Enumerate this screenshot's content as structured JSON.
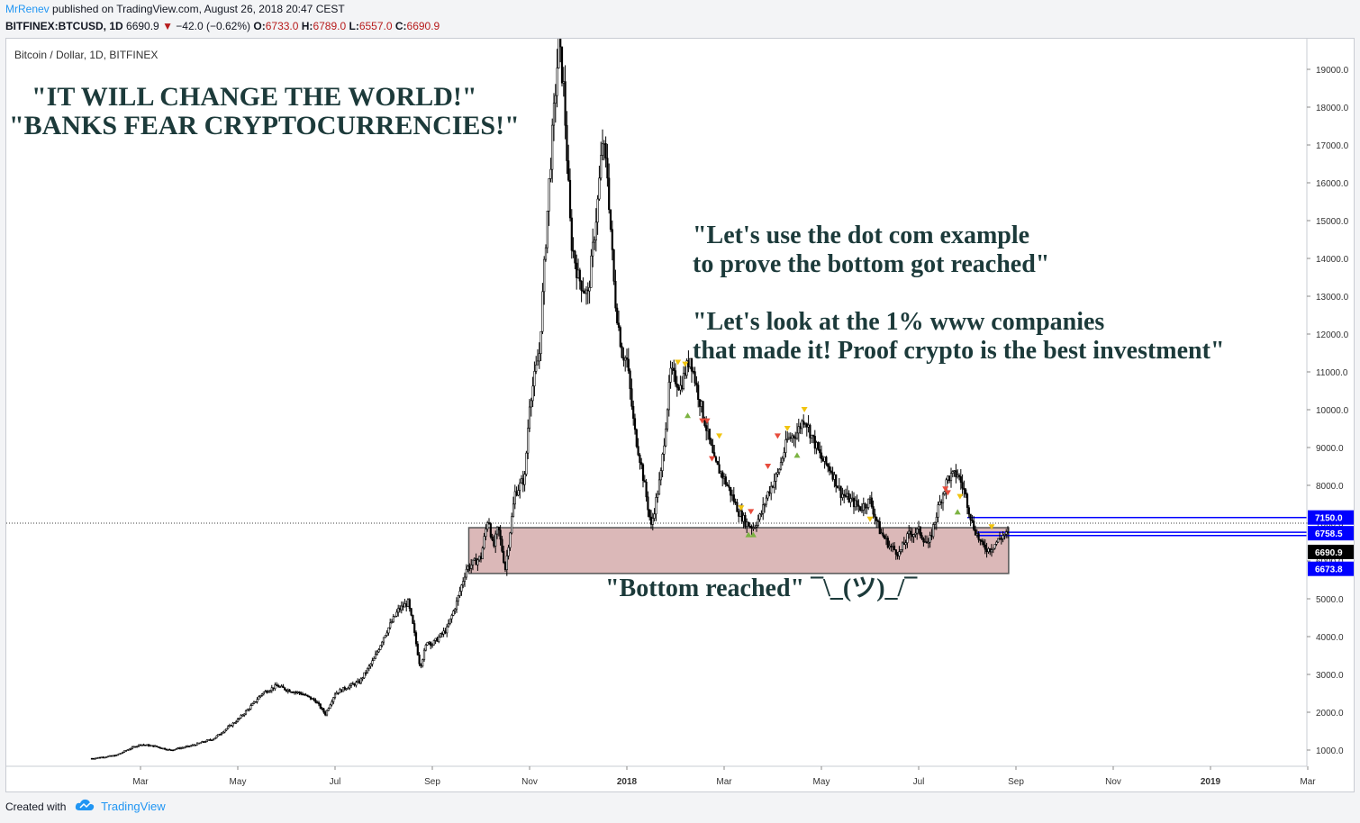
{
  "header": {
    "author": "MrRenev",
    "published": "published on TradingView.com, August 26, 2018 20:47 CEST",
    "symbol": "BITFINEX:BTCUSD, 1D",
    "last": "6690.9",
    "change": "−42.0 (−0.62%)",
    "o_label": "O:",
    "o": "6733.0",
    "h_label": "H:",
    "h": "6789.0",
    "l_label": "L:",
    "l": "6557.0",
    "c_label": "C:",
    "c": "6690.9"
  },
  "footer": {
    "created_with": "Created with",
    "brand": "TradingView"
  },
  "colors": {
    "candle": "#000000",
    "box_fill": "#dbb8b8",
    "box_stroke": "#555555",
    "level_line": "#0000ff",
    "price_label_bg": "#0000ff",
    "current_label_bg": "#000000",
    "annotation_text": "#1c3a3a",
    "signal_red": "#e74c3c",
    "signal_yellow": "#f1c40f",
    "signal_green": "#7cb342"
  },
  "chart_data": {
    "type": "candlestick",
    "title": "Bitcoin / Dollar, 1D, BITFINEX",
    "ylim": [
      500,
      19900
    ],
    "y_ticks": [
      1000,
      2000,
      3000,
      4000,
      5000,
      6000,
      7000,
      8000,
      9000,
      10000,
      11000,
      12000,
      13000,
      14000,
      15000,
      16000,
      17000,
      18000,
      19000
    ],
    "x_ticks": [
      {
        "label": "Mar",
        "t": 1.0,
        "bold": false
      },
      {
        "label": "May",
        "t": 3.0,
        "bold": false
      },
      {
        "label": "Jul",
        "t": 5.0,
        "bold": false
      },
      {
        "label": "Sep",
        "t": 7.0,
        "bold": false
      },
      {
        "label": "Nov",
        "t": 9.0,
        "bold": false
      },
      {
        "label": "2018",
        "t": 11.0,
        "bold": true
      },
      {
        "label": "Mar",
        "t": 13.0,
        "bold": false
      },
      {
        "label": "May",
        "t": 15.0,
        "bold": false
      },
      {
        "label": "Jul",
        "t": 17.0,
        "bold": false
      },
      {
        "label": "Sep",
        "t": 19.0,
        "bold": false
      },
      {
        "label": "Nov",
        "t": 21.0,
        "bold": false
      },
      {
        "label": "2019",
        "t": 23.0,
        "bold": true
      },
      {
        "label": "Mar",
        "t": 25.0,
        "bold": false
      }
    ],
    "price_path": [
      [
        0.0,
        780
      ],
      [
        0.5,
        860
      ],
      [
        0.8,
        1050
      ],
      [
        1.0,
        1150
      ],
      [
        1.3,
        1100
      ],
      [
        1.6,
        1000
      ],
      [
        2.0,
        1100
      ],
      [
        2.5,
        1300
      ],
      [
        2.8,
        1600
      ],
      [
        3.0,
        1800
      ],
      [
        3.3,
        2200
      ],
      [
        3.5,
        2500
      ],
      [
        3.8,
        2700
      ],
      [
        4.0,
        2600
      ],
      [
        4.3,
        2500
      ],
      [
        4.6,
        2300
      ],
      [
        4.8,
        1950
      ],
      [
        5.0,
        2500
      ],
      [
        5.3,
        2700
      ],
      [
        5.5,
        2800
      ],
      [
        5.8,
        3400
      ],
      [
        6.0,
        4000
      ],
      [
        6.3,
        4700
      ],
      [
        6.5,
        4900
      ],
      [
        6.6,
        4300
      ],
      [
        6.75,
        3200
      ],
      [
        6.9,
        3900
      ],
      [
        7.0,
        3800
      ],
      [
        7.3,
        4200
      ],
      [
        7.5,
        4900
      ],
      [
        7.7,
        5800
      ],
      [
        8.0,
        6100
      ],
      [
        8.15,
        7200
      ],
      [
        8.25,
        6300
      ],
      [
        8.35,
        6900
      ],
      [
        8.5,
        5800
      ],
      [
        8.7,
        7800
      ],
      [
        8.9,
        8200
      ],
      [
        9.0,
        10200
      ],
      [
        9.2,
        11500
      ],
      [
        9.4,
        16000
      ],
      [
        9.6,
        19700
      ],
      [
        9.7,
        18500
      ],
      [
        9.85,
        14500
      ],
      [
        10.0,
        13500
      ],
      [
        10.2,
        13000
      ],
      [
        10.4,
        15500
      ],
      [
        10.5,
        17100
      ],
      [
        10.6,
        16200
      ],
      [
        10.75,
        13000
      ],
      [
        10.9,
        11500
      ],
      [
        11.0,
        11300
      ],
      [
        11.15,
        9500
      ],
      [
        11.3,
        8500
      ],
      [
        11.5,
        6900
      ],
      [
        11.7,
        8300
      ],
      [
        11.9,
        11000
      ],
      [
        12.1,
        10600
      ],
      [
        12.3,
        11400
      ],
      [
        12.45,
        10500
      ],
      [
        12.6,
        9700
      ],
      [
        12.8,
        8600
      ],
      [
        12.95,
        8300
      ],
      [
        13.1,
        7900
      ],
      [
        13.3,
        7300
      ],
      [
        13.45,
        7000
      ],
      [
        13.6,
        6900
      ],
      [
        13.75,
        7200
      ],
      [
        13.9,
        7800
      ],
      [
        14.1,
        8300
      ],
      [
        14.3,
        9200
      ],
      [
        14.5,
        9400
      ],
      [
        14.65,
        9800
      ],
      [
        14.8,
        9300
      ],
      [
        15.0,
        8700
      ],
      [
        15.2,
        8400
      ],
      [
        15.4,
        7800
      ],
      [
        15.6,
        7600
      ],
      [
        15.8,
        7400
      ],
      [
        16.0,
        7600
      ],
      [
        16.2,
        6800
      ],
      [
        16.4,
        6400
      ],
      [
        16.6,
        6200
      ],
      [
        16.8,
        6700
      ],
      [
        17.0,
        6800
      ],
      [
        17.2,
        6400
      ],
      [
        17.4,
        7400
      ],
      [
        17.6,
        8200
      ],
      [
        17.8,
        8300
      ],
      [
        17.95,
        7800
      ],
      [
        18.1,
        7000
      ],
      [
        18.3,
        6400
      ],
      [
        18.45,
        6300
      ],
      [
        18.6,
        6500
      ],
      [
        18.75,
        6700
      ],
      [
        18.85,
        6690.9
      ]
    ],
    "zone": {
      "x0": 7.75,
      "x1": 18.85,
      "y0": 5670,
      "y1": 6880,
      "label": "\"Bottom reached\"  ¯\\_(ツ)_/¯"
    },
    "levels": [
      {
        "price": 7150.0,
        "label": "7150.0",
        "x0": 18.0
      },
      {
        "price": 6758.5,
        "label": "6758.5",
        "x0": 18.2
      },
      {
        "price": 6673.8,
        "label": "6673.8",
        "x0": 18.2
      }
    ],
    "current_price": {
      "value": 6690.9,
      "label": "6690.9"
    },
    "signals": [
      {
        "t": 12.05,
        "p": 11250,
        "c": "yellow"
      },
      {
        "t": 12.2,
        "p": 11200,
        "c": "yellow"
      },
      {
        "t": 12.25,
        "p": 9850,
        "c": "green",
        "up": true
      },
      {
        "t": 12.55,
        "p": 9700,
        "c": "red"
      },
      {
        "t": 12.65,
        "p": 9700,
        "c": "red"
      },
      {
        "t": 12.9,
        "p": 9300,
        "c": "yellow"
      },
      {
        "t": 12.75,
        "p": 8700,
        "c": "red"
      },
      {
        "t": 13.35,
        "p": 7400,
        "c": "yellow"
      },
      {
        "t": 13.55,
        "p": 7300,
        "c": "red"
      },
      {
        "t": 13.5,
        "p": 6700,
        "c": "green",
        "up": true
      },
      {
        "t": 13.6,
        "p": 6700,
        "c": "green",
        "up": true
      },
      {
        "t": 13.9,
        "p": 8500,
        "c": "red"
      },
      {
        "t": 14.1,
        "p": 9300,
        "c": "red"
      },
      {
        "t": 14.3,
        "p": 9500,
        "c": "yellow"
      },
      {
        "t": 14.5,
        "p": 8800,
        "c": "green",
        "up": true
      },
      {
        "t": 14.65,
        "p": 10000,
        "c": "yellow"
      },
      {
        "t": 16.0,
        "p": 7100,
        "c": "yellow"
      },
      {
        "t": 17.55,
        "p": 7900,
        "c": "red"
      },
      {
        "t": 17.6,
        "p": 7800,
        "c": "red"
      },
      {
        "t": 17.85,
        "p": 7700,
        "c": "yellow"
      },
      {
        "t": 17.8,
        "p": 7300,
        "c": "green",
        "up": true
      },
      {
        "t": 18.5,
        "p": 6900,
        "c": "yellow"
      }
    ],
    "annotations": {
      "hype_1": "\"IT WILL CHANGE THE WORLD!\"",
      "hype_2": "\"BANKS FEAR CRYPTOCURRENCIES!\"",
      "dotcom_1": "\"Let's use the dot com example",
      "dotcom_2": "to prove the bottom got reached\"",
      "www_1": "\"Let's look at the 1% www companies",
      "www_2": "that made it! Proof crypto is the best investment\""
    }
  }
}
